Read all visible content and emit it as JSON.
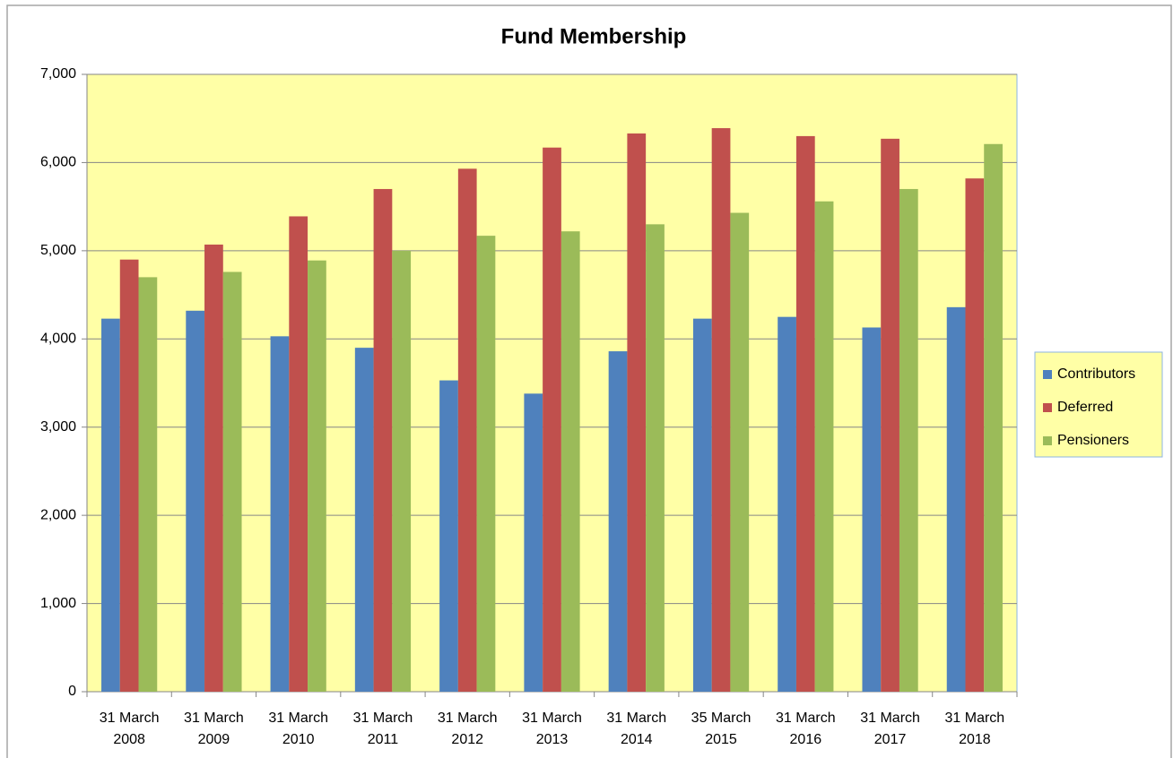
{
  "chart_data": {
    "type": "bar",
    "title": "Fund Membership",
    "categories": [
      "31 March 2008",
      "31 March 2009",
      "31 March 2010",
      "31 March 2011",
      "31 March 2012",
      "31 March 2013",
      "31 March 2014",
      "35 March 2015",
      "31 March 2016",
      "31 March 2017",
      "31 March 2018"
    ],
    "series": [
      {
        "name": "Contributors",
        "color": "#4f81bd",
        "values": [
          4230,
          4320,
          4030,
          3900,
          3530,
          3380,
          3860,
          4230,
          4250,
          4130,
          4360
        ]
      },
      {
        "name": "Deferred",
        "color": "#c0504d",
        "values": [
          4900,
          5070,
          5390,
          5700,
          5930,
          6170,
          6330,
          6390,
          6300,
          6270,
          5820
        ]
      },
      {
        "name": "Pensioners",
        "color": "#9bbb59",
        "values": [
          4700,
          4760,
          4890,
          5000,
          5170,
          5220,
          5300,
          5430,
          5560,
          5700,
          6210
        ]
      }
    ],
    "ylim": [
      0,
      7000
    ],
    "yticks": [
      0,
      {
        "value": 1000,
        "label": "1,000"
      },
      {
        "value": 2000,
        "label": "2,000"
      },
      {
        "value": 3000,
        "label": "3,000"
      },
      {
        "value": 4000,
        "label": "4,000"
      },
      {
        "value": 5000,
        "label": "5,000"
      },
      {
        "value": 6000,
        "label": "6,000"
      },
      {
        "value": 7000,
        "label": "7,000"
      }
    ],
    "grid": true,
    "legend": "right",
    "plot_background": "#ffffa6"
  }
}
